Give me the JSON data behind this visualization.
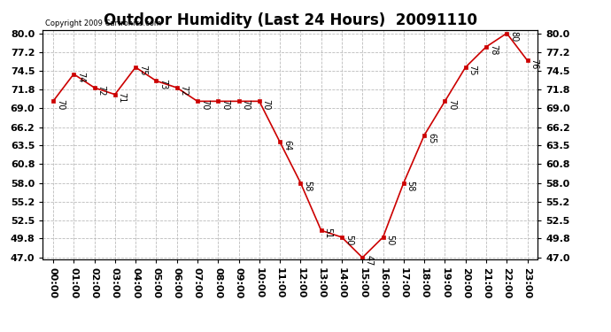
{
  "title": "Outdoor Humidity (Last 24 Hours)  20091110",
  "copyright": "Copyright 2009 Cartronics.com",
  "x_labels": [
    "00:00",
    "01:00",
    "02:00",
    "03:00",
    "04:00",
    "05:00",
    "06:00",
    "07:00",
    "08:00",
    "09:00",
    "10:00",
    "11:00",
    "12:00",
    "13:00",
    "14:00",
    "15:00",
    "16:00",
    "17:00",
    "18:00",
    "19:00",
    "20:00",
    "21:00",
    "22:00",
    "23:00"
  ],
  "y_values": [
    70,
    74,
    72,
    71,
    75,
    73,
    72,
    70,
    70,
    70,
    70,
    64,
    58,
    51,
    50,
    47,
    50,
    58,
    65,
    70,
    75,
    78,
    80,
    76
  ],
  "y_ticks": [
    47.0,
    49.8,
    52.5,
    55.2,
    58.0,
    60.8,
    63.5,
    66.2,
    69.0,
    71.8,
    74.5,
    77.2,
    80.0
  ],
  "line_color": "#cc0000",
  "marker_color": "#cc0000",
  "background_color": "#ffffff",
  "grid_color": "#bbbbbb",
  "title_fontsize": 12,
  "annotation_fontsize": 7,
  "tick_fontsize": 8,
  "copyright_fontsize": 6,
  "ymin": 47.0,
  "ymax": 80.0
}
